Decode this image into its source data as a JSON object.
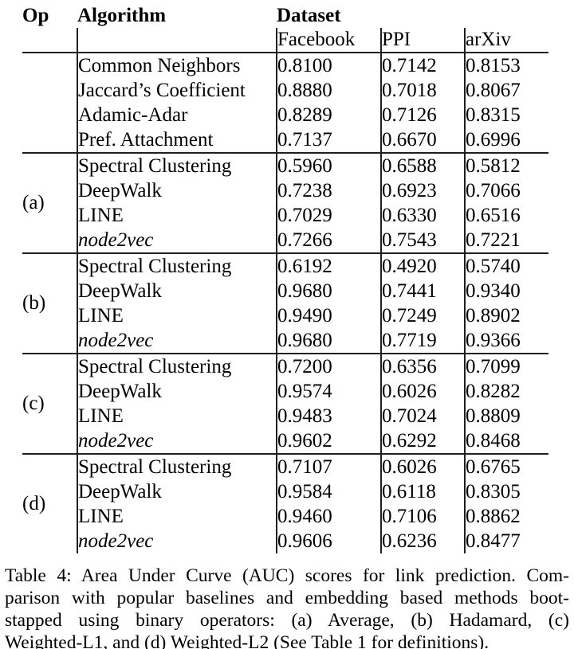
{
  "page": {
    "background_color": "#ffffff",
    "text_color": "#000000",
    "rule_color": "#1f1f1f"
  },
  "table": {
    "header": {
      "op": "Op",
      "algorithm": "Algorithm",
      "dataset": "Dataset",
      "datasets": [
        "Facebook",
        "PPI",
        "arXiv"
      ]
    },
    "groups": [
      {
        "op": "",
        "rows": [
          {
            "algorithm": "Common Neighbors",
            "italic": false,
            "values": [
              "0.8100",
              "0.7142",
              "0.8153"
            ],
            "bold": [
              false,
              false,
              false
            ]
          },
          {
            "algorithm": "Jaccard’s Coefficient",
            "italic": false,
            "values": [
              "0.8880",
              "0.7018",
              "0.8067"
            ],
            "bold": [
              false,
              false,
              false
            ]
          },
          {
            "algorithm": "Adamic-Adar",
            "italic": false,
            "values": [
              "0.8289",
              "0.7126",
              "0.8315"
            ],
            "bold": [
              false,
              false,
              false
            ]
          },
          {
            "algorithm": "Pref. Attachment",
            "italic": false,
            "values": [
              "0.7137",
              "0.6670",
              "0.6996"
            ],
            "bold": [
              false,
              false,
              false
            ]
          }
        ]
      },
      {
        "op": "(a)",
        "rows": [
          {
            "algorithm": "Spectral Clustering",
            "italic": false,
            "values": [
              "0.5960",
              "0.6588",
              "0.5812"
            ],
            "bold": [
              false,
              false,
              false
            ]
          },
          {
            "algorithm": "DeepWalk",
            "italic": false,
            "values": [
              "0.7238",
              "0.6923",
              "0.7066"
            ],
            "bold": [
              false,
              false,
              false
            ]
          },
          {
            "algorithm": "LINE",
            "italic": false,
            "values": [
              "0.7029",
              "0.6330",
              "0.6516"
            ],
            "bold": [
              false,
              false,
              false
            ]
          },
          {
            "algorithm": "node2vec",
            "italic": true,
            "values": [
              "0.7266",
              "0.7543",
              "0.7221"
            ],
            "bold": [
              false,
              false,
              false
            ]
          }
        ]
      },
      {
        "op": "(b)",
        "rows": [
          {
            "algorithm": "Spectral Clustering",
            "italic": false,
            "values": [
              "0.6192",
              "0.4920",
              "0.5740"
            ],
            "bold": [
              false,
              false,
              false
            ]
          },
          {
            "algorithm": "DeepWalk",
            "italic": false,
            "values": [
              "0.9680",
              "0.7441",
              "0.9340"
            ],
            "bold": [
              true,
              false,
              false
            ]
          },
          {
            "algorithm": "LINE",
            "italic": false,
            "values": [
              "0.9490",
              "0.7249",
              "0.8902"
            ],
            "bold": [
              false,
              false,
              false
            ]
          },
          {
            "algorithm": "node2vec",
            "italic": true,
            "values": [
              "0.9680",
              "0.7719",
              "0.9366"
            ],
            "bold": [
              true,
              true,
              true
            ]
          }
        ]
      },
      {
        "op": "(c)",
        "rows": [
          {
            "algorithm": "Spectral Clustering",
            "italic": false,
            "values": [
              "0.7200",
              "0.6356",
              "0.7099"
            ],
            "bold": [
              false,
              false,
              false
            ]
          },
          {
            "algorithm": "DeepWalk",
            "italic": false,
            "values": [
              "0.9574",
              "0.6026",
              "0.8282"
            ],
            "bold": [
              false,
              false,
              false
            ]
          },
          {
            "algorithm": "LINE",
            "italic": false,
            "values": [
              "0.9483",
              "0.7024",
              "0.8809"
            ],
            "bold": [
              false,
              false,
              false
            ]
          },
          {
            "algorithm": "node2vec",
            "italic": true,
            "values": [
              "0.9602",
              "0.6292",
              "0.8468"
            ],
            "bold": [
              false,
              false,
              false
            ]
          }
        ]
      },
      {
        "op": "(d)",
        "rows": [
          {
            "algorithm": "Spectral Clustering",
            "italic": false,
            "values": [
              "0.7107",
              "0.6026",
              "0.6765"
            ],
            "bold": [
              false,
              false,
              false
            ]
          },
          {
            "algorithm": "DeepWalk",
            "italic": false,
            "values": [
              "0.9584",
              "0.6118",
              "0.8305"
            ],
            "bold": [
              false,
              false,
              false
            ]
          },
          {
            "algorithm": "LINE",
            "italic": false,
            "values": [
              "0.9460",
              "0.7106",
              "0.8862"
            ],
            "bold": [
              false,
              false,
              false
            ]
          },
          {
            "algorithm": "node2vec",
            "italic": true,
            "values": [
              "0.9606",
              "0.6236",
              "0.8477"
            ],
            "bold": [
              false,
              false,
              false
            ]
          }
        ]
      }
    ]
  },
  "caption": {
    "lines": [
      "Table 4: Area Under Curve (AUC) scores for link prediction. Com-",
      "parison with popular baselines and embedding based methods boot-",
      "stapped using binary operators: (a) Average, (b) Hadamard, (c)",
      "Weighted-L1, and (d) Weighted-L2 (See Table 1 for definitions)."
    ]
  }
}
